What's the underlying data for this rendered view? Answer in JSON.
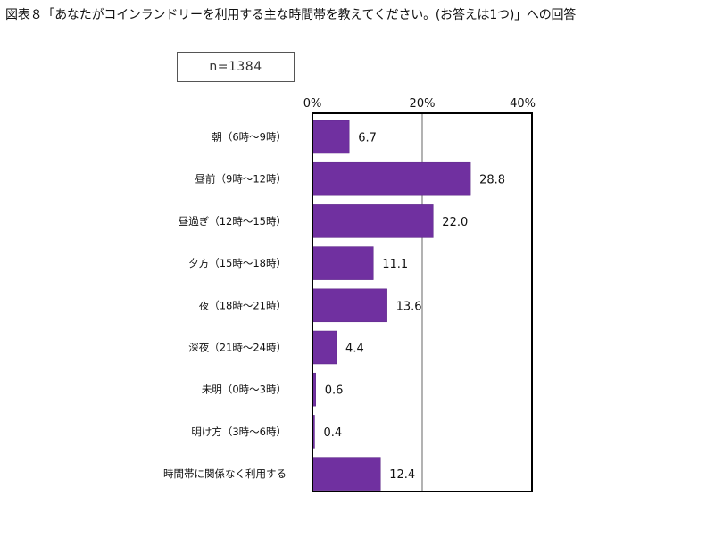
{
  "title": "図表８「あなたがコインランドリーを利用する主な時間帯を教えてください。(お答えは1つ)」への回答",
  "sample_label": "n=1384",
  "colors": {
    "bar": "#7030a0",
    "frame": "#000000",
    "gridline": "#808080"
  },
  "chart_data": {
    "type": "bar",
    "orientation": "horizontal",
    "categories": [
      "朝（6時〜9時）",
      "昼前（9時〜12時）",
      "昼過ぎ（12時〜15時）",
      "夕方（15時〜18時）",
      "夜（18時〜21時）",
      "深夜（21時〜24時）",
      "未明（0時〜3時）",
      "明け方（3時〜6時）",
      "時間帯に関係なく利用する"
    ],
    "values": [
      6.7,
      28.8,
      22.0,
      11.1,
      13.6,
      4.4,
      0.6,
      0.4,
      12.4
    ],
    "value_labels": [
      "6.7",
      "28.8",
      "22.0",
      "11.1",
      "13.6",
      "4.4",
      "0.6",
      "0.4",
      "12.4"
    ],
    "xlim": [
      0,
      40
    ],
    "x_ticks": [
      0,
      20,
      40
    ],
    "x_tick_labels": [
      "0%",
      "20%",
      "40%"
    ],
    "x_axis_position": "top",
    "grid": true,
    "legend": "none"
  }
}
